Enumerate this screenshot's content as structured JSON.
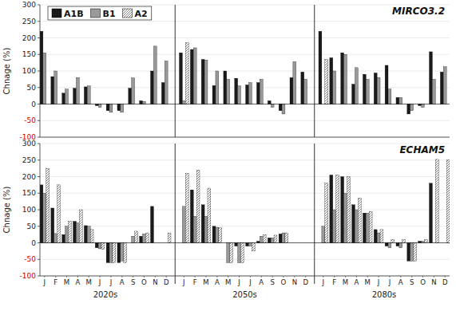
{
  "chart_data": [
    {
      "type": "bar",
      "title": "MIRCO3.2",
      "ylabel": "Chnage (%)",
      "categories": [
        "J",
        "F",
        "M",
        "A",
        "M",
        "J",
        "J",
        "A",
        "S",
        "O",
        "N",
        "D",
        "J",
        "F",
        "M",
        "A",
        "M",
        "J",
        "J",
        "A",
        "S",
        "O",
        "N",
        "D",
        "J",
        "F",
        "M",
        "A",
        "M",
        "J",
        "J",
        "A",
        "S",
        "O",
        "N",
        "D"
      ],
      "series": [
        {
          "name": "A1B",
          "color": "#1a1a1a",
          "values": [
            220,
            83,
            33,
            48,
            52,
            -5,
            -20,
            -20,
            48,
            10,
            100,
            65,
            155,
            165,
            135,
            56,
            100,
            78,
            58,
            65,
            10,
            -20,
            80,
            97,
            220,
            140,
            155,
            60,
            90,
            94,
            117,
            20,
            -30,
            -5,
            158,
            97
          ]
        },
        {
          "name": "B1",
          "color": "#999999",
          "values": [
            155,
            100,
            45,
            80,
            55,
            -10,
            -25,
            -25,
            79,
            8,
            175,
            130,
            10,
            170,
            133,
            100,
            75,
            55,
            65,
            75,
            -10,
            -30,
            128,
            75,
            0,
            100,
            150,
            110,
            75,
            80,
            45,
            20,
            -20,
            -10,
            75,
            113
          ]
        },
        {
          "name": "A2",
          "color": "#ffffff",
          "values": [
            0,
            0,
            0,
            0,
            0,
            0,
            0,
            0,
            0,
            0,
            0,
            0,
            185,
            0,
            0,
            0,
            0,
            0,
            0,
            0,
            0,
            0,
            0,
            0,
            135,
            0,
            0,
            0,
            0,
            0,
            0,
            0,
            0,
            0,
            0,
            0
          ]
        }
      ],
      "ylim": [
        -100,
        300
      ],
      "yticks": [
        -100,
        -50,
        0,
        50,
        100,
        150,
        200,
        250,
        300
      ],
      "grid": true,
      "legend": "upper left",
      "tick_labels": "y"
    },
    {
      "type": "bar",
      "title": "ECHAM5",
      "ylabel": "Chnage (%)",
      "categories": [
        "J",
        "F",
        "M",
        "A",
        "M",
        "J",
        "J",
        "A",
        "S",
        "O",
        "N",
        "D",
        "J",
        "F",
        "M",
        "A",
        "M",
        "J",
        "J",
        "A",
        "S",
        "O",
        "N",
        "D",
        "J",
        "F",
        "M",
        "A",
        "M",
        "J",
        "J",
        "A",
        "S",
        "O",
        "N",
        "D"
      ],
      "annotations": [
        "2020s",
        "2050s",
        "2080s"
      ],
      "series": [
        {
          "color": "#1a1a1a",
          "values": [
            175,
            105,
            25,
            65,
            52,
            -15,
            -60,
            -60,
            0,
            20,
            110,
            0,
            0,
            160,
            115,
            50,
            0,
            -10,
            -10,
            5,
            15,
            27,
            0,
            0,
            0,
            205,
            200,
            115,
            90,
            40,
            -10,
            -10,
            -55,
            5,
            180,
            0
          ]
        },
        {
          "color": "#999999",
          "values": [
            150,
            28,
            50,
            60,
            50,
            -18,
            -60,
            -55,
            20,
            27,
            0,
            0,
            110,
            80,
            80,
            47,
            -60,
            -60,
            -10,
            20,
            15,
            30,
            0,
            0,
            50,
            100,
            150,
            100,
            90,
            30,
            -15,
            -15,
            -55,
            5,
            0,
            0
          ]
        },
        {
          "color": "#ffffff",
          "values": [
            225,
            175,
            65,
            100,
            40,
            -20,
            -60,
            -60,
            35,
            30,
            0,
            30,
            210,
            220,
            165,
            45,
            -60,
            -60,
            -25,
            25,
            23,
            30,
            0,
            0,
            180,
            205,
            200,
            135,
            95,
            40,
            10,
            10,
            -55,
            10,
            252,
            250
          ]
        }
      ],
      "ylim": [
        -100,
        300
      ],
      "yticks": [
        -100,
        -50,
        0,
        50,
        100,
        150,
        200,
        250,
        300
      ],
      "grid": true
    }
  ]
}
